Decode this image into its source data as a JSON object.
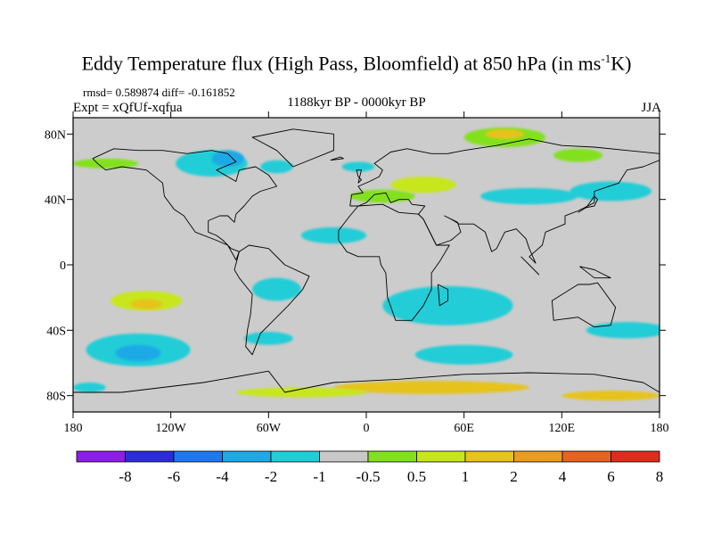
{
  "title": {
    "main": "Eddy Temperature flux (High Pass, Bloomfield) at 850 hPa (in ms",
    "sup": "-1",
    "end": "K)"
  },
  "stats": "rmsd= 0.589874 diff= -0.161852",
  "expt": "Expt = xQfUf-xqfua",
  "period": "1188kyr BP - 0000kyr BP",
  "season": "JJA",
  "map": {
    "lon_range": [
      -180,
      180
    ],
    "lat_range": [
      -90,
      90
    ],
    "background_color": "#cccccc",
    "x_ticks": [
      {
        "lon": -180,
        "label": "180"
      },
      {
        "lon": -120,
        "label": "120W"
      },
      {
        "lon": -60,
        "label": "60W"
      },
      {
        "lon": 0,
        "label": "0"
      },
      {
        "lon": 60,
        "label": "60E"
      },
      {
        "lon": 120,
        "label": "120E"
      },
      {
        "lon": 180,
        "label": "180"
      }
    ],
    "y_ticks": [
      {
        "lat": 80,
        "label": "80N"
      },
      {
        "lat": 40,
        "label": "40N"
      },
      {
        "lat": 0,
        "label": "0"
      },
      {
        "lat": -40,
        "label": "40S"
      },
      {
        "lat": -80,
        "label": "80S"
      }
    ]
  },
  "colorbar": {
    "colors": [
      "#8c1ee6",
      "#2d2dd7",
      "#1e78f0",
      "#1eaae6",
      "#23cdd7",
      "#c8c8c8",
      "#82e11e",
      "#c8e61e",
      "#e6c31e",
      "#eb9b1e",
      "#e6641e",
      "#dc2d1e"
    ],
    "labels": [
      "-8",
      "-6",
      "-4",
      "-2",
      "-1",
      "-0.5",
      "0.5",
      "1",
      "2",
      "4",
      "6",
      "8"
    ]
  },
  "field_blobs": [
    {
      "lon": -95,
      "lat": 62,
      "rx": 22,
      "ry": 8,
      "c": 4
    },
    {
      "lon": -85,
      "lat": 65,
      "rx": 10,
      "ry": 5,
      "c": 3
    },
    {
      "lon": -160,
      "lat": 62,
      "rx": 20,
      "ry": 3,
      "c": 6
    },
    {
      "lon": -55,
      "lat": 60,
      "rx": 10,
      "ry": 4,
      "c": 4
    },
    {
      "lon": 10,
      "lat": 42,
      "rx": 20,
      "ry": 4,
      "c": 6
    },
    {
      "lon": 35,
      "lat": 49,
      "rx": 20,
      "ry": 5,
      "c": 7
    },
    {
      "lon": 85,
      "lat": 78,
      "rx": 25,
      "ry": 6,
      "c": 6
    },
    {
      "lon": 85,
      "lat": 80,
      "rx": 12,
      "ry": 3,
      "c": 8
    },
    {
      "lon": 130,
      "lat": 67,
      "rx": 15,
      "ry": 4,
      "c": 6
    },
    {
      "lon": 100,
      "lat": 42,
      "rx": 30,
      "ry": 5,
      "c": 4
    },
    {
      "lon": -5,
      "lat": 60,
      "rx": 10,
      "ry": 3,
      "c": 4
    },
    {
      "lon": -20,
      "lat": 18,
      "rx": 20,
      "ry": 5,
      "c": 4
    },
    {
      "lon": 150,
      "lat": 45,
      "rx": 25,
      "ry": 6,
      "c": 4
    },
    {
      "lon": -135,
      "lat": -22,
      "rx": 22,
      "ry": 6,
      "c": 7
    },
    {
      "lon": -135,
      "lat": -24,
      "rx": 10,
      "ry": 3,
      "c": 8
    },
    {
      "lon": -140,
      "lat": -52,
      "rx": 32,
      "ry": 10,
      "c": 4
    },
    {
      "lon": -140,
      "lat": -54,
      "rx": 14,
      "ry": 5,
      "c": 3
    },
    {
      "lon": -55,
      "lat": -15,
      "rx": 15,
      "ry": 7,
      "c": 4
    },
    {
      "lon": -60,
      "lat": -45,
      "rx": 15,
      "ry": 4,
      "c": 4
    },
    {
      "lon": 50,
      "lat": -25,
      "rx": 40,
      "ry": 12,
      "c": 4
    },
    {
      "lon": 60,
      "lat": -55,
      "rx": 30,
      "ry": 6,
      "c": 4
    },
    {
      "lon": 160,
      "lat": -40,
      "rx": 25,
      "ry": 5,
      "c": 4
    },
    {
      "lon": 40,
      "lat": -75,
      "rx": 60,
      "ry": 4,
      "c": 8
    },
    {
      "lon": -40,
      "lat": -78,
      "rx": 40,
      "ry": 3,
      "c": 7
    },
    {
      "lon": 150,
      "lat": -80,
      "rx": 30,
      "ry": 3,
      "c": 8
    },
    {
      "lon": -170,
      "lat": -75,
      "rx": 10,
      "ry": 3,
      "c": 4
    }
  ],
  "coastlines": [
    [
      [
        -168,
        65
      ],
      [
        -155,
        71
      ],
      [
        -140,
        70
      ],
      [
        -125,
        70
      ],
      [
        -110,
        68
      ],
      [
        -95,
        70
      ],
      [
        -85,
        68
      ],
      [
        -80,
        63
      ],
      [
        -92,
        58
      ],
      [
        -80,
        51
      ],
      [
        -78,
        58
      ],
      [
        -68,
        60
      ],
      [
        -60,
        55
      ],
      [
        -55,
        48
      ],
      [
        -65,
        45
      ],
      [
        -70,
        42
      ],
      [
        -75,
        36
      ],
      [
        -80,
        31
      ],
      [
        -81,
        26
      ],
      [
        -85,
        30
      ],
      [
        -90,
        30
      ],
      [
        -97,
        27
      ],
      [
        -97,
        20
      ],
      [
        -92,
        18
      ],
      [
        -88,
        15
      ],
      [
        -83,
        10
      ],
      [
        -78,
        8
      ],
      [
        -80,
        3
      ],
      [
        -85,
        12
      ],
      [
        -92,
        15
      ],
      [
        -105,
        20
      ],
      [
        -112,
        30
      ],
      [
        -118,
        34
      ],
      [
        -124,
        42
      ],
      [
        -125,
        50
      ],
      [
        -135,
        58
      ],
      [
        -150,
        60
      ],
      [
        -160,
        58
      ],
      [
        -165,
        62
      ],
      [
        -168,
        65
      ]
    ],
    [
      [
        -45,
        60
      ],
      [
        -20,
        70
      ],
      [
        -20,
        80
      ],
      [
        -45,
        83
      ],
      [
        -70,
        78
      ],
      [
        -55,
        70
      ],
      [
        -45,
        60
      ]
    ],
    [
      [
        -78,
        8
      ],
      [
        -72,
        12
      ],
      [
        -60,
        10
      ],
      [
        -50,
        0
      ],
      [
        -35,
        -7
      ],
      [
        -39,
        -15
      ],
      [
        -48,
        -25
      ],
      [
        -58,
        -35
      ],
      [
        -65,
        -42
      ],
      [
        -68,
        -50
      ],
      [
        -70,
        -55
      ],
      [
        -74,
        -50
      ],
      [
        -73,
        -40
      ],
      [
        -71,
        -30
      ],
      [
        -70,
        -18
      ],
      [
        -78,
        -8
      ],
      [
        -81,
        -3
      ],
      [
        -78,
        8
      ]
    ],
    [
      [
        -10,
        36
      ],
      [
        -9,
        43
      ],
      [
        -2,
        44
      ],
      [
        -5,
        48
      ],
      [
        2,
        51
      ],
      [
        8,
        54
      ],
      [
        10,
        58
      ],
      [
        5,
        62
      ],
      [
        15,
        69
      ],
      [
        25,
        71
      ],
      [
        40,
        68
      ],
      [
        50,
        68
      ],
      [
        60,
        70
      ],
      [
        80,
        73
      ],
      [
        100,
        77
      ],
      [
        120,
        73
      ],
      [
        140,
        72
      ],
      [
        160,
        70
      ],
      [
        180,
        68
      ],
      [
        180,
        64
      ],
      [
        170,
        60
      ],
      [
        160,
        58
      ],
      [
        155,
        50
      ],
      [
        140,
        45
      ],
      [
        140,
        38
      ],
      [
        130,
        33
      ],
      [
        122,
        30
      ],
      [
        122,
        25
      ],
      [
        110,
        20
      ],
      [
        108,
        12
      ],
      [
        100,
        5
      ],
      [
        104,
        1
      ],
      [
        100,
        10
      ],
      [
        98,
        16
      ],
      [
        92,
        22
      ],
      [
        85,
        20
      ],
      [
        80,
        10
      ],
      [
        77,
        8
      ],
      [
        73,
        20
      ],
      [
        66,
        25
      ],
      [
        57,
        25
      ],
      [
        52,
        28
      ],
      [
        48,
        30
      ],
      [
        56,
        26
      ],
      [
        58,
        20
      ],
      [
        52,
        15
      ],
      [
        43,
        12
      ],
      [
        35,
        28
      ],
      [
        32,
        31
      ],
      [
        36,
        36
      ],
      [
        28,
        37
      ],
      [
        26,
        40
      ],
      [
        20,
        40
      ],
      [
        15,
        38
      ],
      [
        12,
        44
      ],
      [
        5,
        43
      ],
      [
        0,
        38
      ],
      [
        -5,
        36
      ],
      [
        -10,
        36
      ]
    ],
    [
      [
        -17,
        15
      ],
      [
        -17,
        21
      ],
      [
        -10,
        30
      ],
      [
        -5,
        36
      ],
      [
        10,
        37
      ],
      [
        20,
        32
      ],
      [
        32,
        31
      ],
      [
        35,
        28
      ],
      [
        43,
        12
      ],
      [
        51,
        12
      ],
      [
        45,
        2
      ],
      [
        40,
        -5
      ],
      [
        40,
        -15
      ],
      [
        35,
        -25
      ],
      [
        28,
        -34
      ],
      [
        18,
        -34
      ],
      [
        13,
        -20
      ],
      [
        12,
        -5
      ],
      [
        9,
        0
      ],
      [
        8,
        5
      ],
      [
        -5,
        5
      ],
      [
        -12,
        8
      ],
      [
        -17,
        15
      ]
    ],
    [
      [
        115,
        -34
      ],
      [
        114,
        -22
      ],
      [
        130,
        -12
      ],
      [
        137,
        -12
      ],
      [
        142,
        -11
      ],
      [
        145,
        -15
      ],
      [
        153,
        -26
      ],
      [
        150,
        -37
      ],
      [
        140,
        -38
      ],
      [
        130,
        -32
      ],
      [
        115,
        -34
      ]
    ],
    [
      [
        44,
        -12
      ],
      [
        50,
        -15
      ],
      [
        50,
        -22
      ],
      [
        45,
        -25
      ],
      [
        44,
        -12
      ]
    ],
    [
      [
        -5,
        50
      ],
      [
        -3,
        58
      ],
      [
        -6,
        58
      ],
      [
        -5,
        54
      ],
      [
        -3,
        52
      ],
      [
        -5,
        50
      ]
    ],
    [
      [
        -180,
        -78
      ],
      [
        -150,
        -78
      ],
      [
        -100,
        -72
      ],
      [
        -60,
        -65
      ],
      [
        -50,
        -78
      ],
      [
        -20,
        -72
      ],
      [
        20,
        -70
      ],
      [
        60,
        -67
      ],
      [
        100,
        -66
      ],
      [
        140,
        -67
      ],
      [
        170,
        -72
      ],
      [
        180,
        -78
      ]
    ],
    [
      [
        130,
        32
      ],
      [
        135,
        35
      ],
      [
        140,
        36
      ],
      [
        142,
        40
      ],
      [
        140,
        42
      ],
      [
        135,
        35
      ],
      [
        130,
        32
      ]
    ],
    [
      [
        95,
        5
      ],
      [
        105,
        -5
      ],
      [
        106,
        -6
      ],
      [
        100,
        0
      ],
      [
        95,
        5
      ]
    ],
    [
      [
        131,
        -1
      ],
      [
        140,
        -3
      ],
      [
        150,
        -8
      ],
      [
        140,
        -8
      ],
      [
        131,
        -1
      ]
    ],
    [
      [
        -22,
        64
      ],
      [
        -14,
        65
      ],
      [
        -16,
        66
      ],
      [
        -22,
        64
      ]
    ]
  ]
}
